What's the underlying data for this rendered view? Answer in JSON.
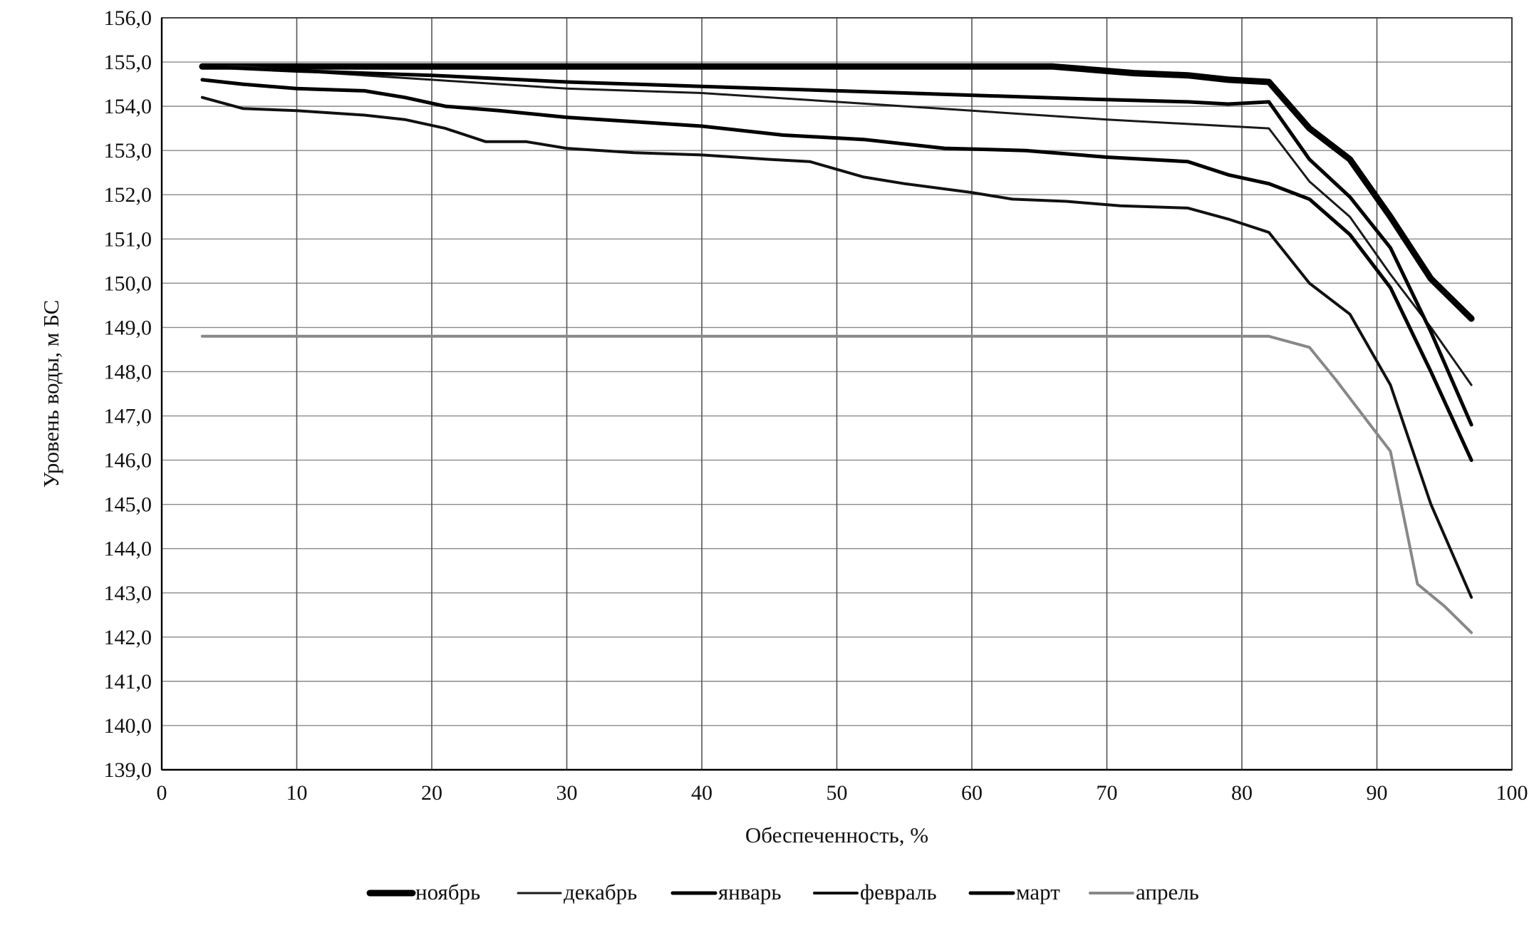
{
  "chart_data": {
    "type": "line",
    "title": "",
    "xlabel": "Обеспеченность, %",
    "ylabel": "Уровень воды, м БС",
    "xlim": [
      0,
      100
    ],
    "ylim": [
      139,
      156
    ],
    "x_ticks": [
      "0",
      "10",
      "20",
      "30",
      "40",
      "50",
      "60",
      "70",
      "80",
      "90",
      "100"
    ],
    "y_ticks": [
      "139,0",
      "140,0",
      "141,0",
      "142,0",
      "143,0",
      "144,0",
      "145,0",
      "146,0",
      "147,0",
      "148,0",
      "149,0",
      "150,0",
      "151,0",
      "152,0",
      "153,0",
      "154,0",
      "155,0",
      "156,0"
    ],
    "grid": true,
    "legend_position": "bottom",
    "series": [
      {
        "name": "ноябрь",
        "color": "#000000",
        "x": [
          3,
          10,
          20,
          30,
          40,
          50,
          60,
          66,
          70,
          72,
          76,
          79,
          82,
          85,
          88,
          91,
          94,
          97
        ],
        "y": [
          154.9,
          154.9,
          154.9,
          154.9,
          154.9,
          154.9,
          154.9,
          154.9,
          154.8,
          154.75,
          154.7,
          154.6,
          154.55,
          153.5,
          152.8,
          151.5,
          150.1,
          149.2
        ]
      },
      {
        "name": "декабрь",
        "color": "#1a1a1a",
        "x": [
          3,
          6,
          10,
          15,
          20,
          30,
          40,
          50,
          60,
          70,
          76,
          79,
          82,
          85,
          88,
          91,
          94,
          97
        ],
        "y": [
          154.9,
          154.9,
          154.8,
          154.7,
          154.6,
          154.4,
          154.3,
          154.1,
          153.9,
          153.7,
          153.6,
          153.55,
          153.5,
          152.3,
          151.5,
          150.2,
          149.0,
          147.7
        ]
      },
      {
        "name": "январь",
        "color": "#000000",
        "x": [
          3,
          6,
          10,
          15,
          18,
          21,
          25,
          30,
          35,
          40,
          46,
          52,
          58,
          64,
          70,
          76,
          79,
          82,
          85,
          88,
          91,
          94,
          97
        ],
        "y": [
          154.6,
          154.5,
          154.4,
          154.35,
          154.2,
          154.0,
          153.9,
          153.75,
          153.65,
          153.55,
          153.35,
          153.25,
          153.05,
          153.0,
          152.85,
          152.75,
          152.45,
          152.25,
          151.9,
          151.1,
          149.9,
          148.0,
          146.0
        ]
      },
      {
        "name": "февраль",
        "color": "#111111",
        "x": [
          3,
          6,
          10,
          15,
          18,
          21,
          24,
          27,
          30,
          35,
          40,
          45,
          48,
          52,
          55,
          60,
          63,
          67,
          71,
          76,
          79,
          82,
          85,
          88,
          91,
          94,
          97
        ],
        "y": [
          154.2,
          153.95,
          153.9,
          153.8,
          153.7,
          153.5,
          153.2,
          153.2,
          153.05,
          152.95,
          152.9,
          152.8,
          152.75,
          152.4,
          152.25,
          152.05,
          151.9,
          151.85,
          151.75,
          151.7,
          151.45,
          151.15,
          150.0,
          149.3,
          147.7,
          145.0,
          142.9
        ]
      },
      {
        "name": "март",
        "color": "#000000",
        "x": [
          3,
          10,
          20,
          30,
          40,
          50,
          60,
          70,
          76,
          79,
          82,
          85,
          88,
          91,
          94,
          97
        ],
        "y": [
          154.9,
          154.8,
          154.7,
          154.55,
          154.45,
          154.35,
          154.25,
          154.15,
          154.1,
          154.05,
          154.1,
          152.8,
          151.95,
          150.8,
          148.9,
          146.8
        ]
      },
      {
        "name": "апрель",
        "color": "#888888",
        "x": [
          3,
          10,
          20,
          30,
          40,
          50,
          60,
          70,
          78,
          82,
          85,
          87,
          89,
          91,
          93,
          95,
          97
        ],
        "y": [
          148.8,
          148.8,
          148.8,
          148.8,
          148.8,
          148.8,
          148.8,
          148.8,
          148.8,
          148.8,
          148.55,
          147.8,
          147.0,
          146.2,
          143.2,
          142.7,
          142.1
        ]
      }
    ]
  }
}
